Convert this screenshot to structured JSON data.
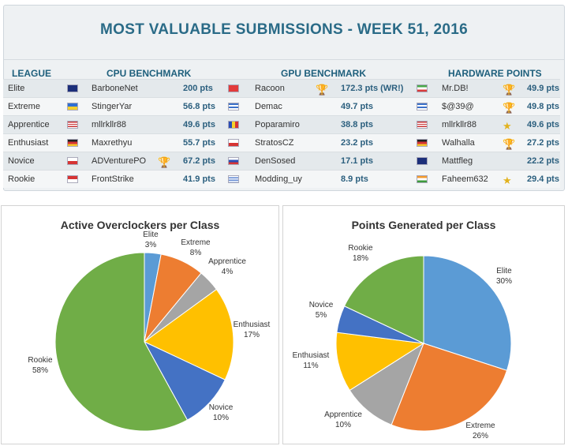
{
  "header": {
    "title": "MOST VALUABLE SUBMISSIONS - WEEK 51, 2016"
  },
  "columns": {
    "league": "LEAGUE",
    "cpu": "CPU BENCHMARK",
    "gpu": "GPU BENCHMARK",
    "hw": "HARDWARE POINTS"
  },
  "rows": [
    {
      "league": "Elite",
      "cpu_flag": "australia",
      "cpu_user": "BarboneNet",
      "cpu_pts": "200 pts",
      "cpu_trophy": "",
      "gpu_flag": "switzerland",
      "gpu_user": "Racoon",
      "gpu_pts": "172.3 pts (WR!)",
      "gpu_trophy": "gold-trophy",
      "hw_flag": "iran",
      "hw_user": "Mr.DB!",
      "hw_pts": "49.9 pts",
      "hw_trophy": "gold-trophy"
    },
    {
      "league": "Extreme",
      "cpu_flag": "ukraine",
      "cpu_user": "StingerYar",
      "cpu_pts": "56.8 pts",
      "cpu_trophy": "",
      "gpu_flag": "greece",
      "gpu_user": "Demac",
      "gpu_pts": "49.7 pts",
      "gpu_trophy": "",
      "hw_flag": "greece",
      "hw_user": "$@39@",
      "hw_pts": "49.8 pts",
      "hw_trophy": "gold-trophy"
    },
    {
      "league": "Apprentice",
      "cpu_flag": "usa",
      "cpu_user": "mllrkllr88",
      "cpu_pts": "49.6 pts",
      "cpu_trophy": "",
      "gpu_flag": "romania",
      "gpu_user": "Poparamiro",
      "gpu_pts": "38.8 pts",
      "gpu_trophy": "",
      "hw_flag": "usa",
      "hw_user": "mllrkllr88",
      "hw_pts": "49.6 pts",
      "hw_trophy": "star-trophy"
    },
    {
      "league": "Enthusiast",
      "cpu_flag": "germany",
      "cpu_user": "Maxrethyu",
      "cpu_pts": "55.7 pts",
      "cpu_trophy": "",
      "gpu_flag": "czech",
      "gpu_user": "StratosCZ",
      "gpu_pts": "23.2 pts",
      "gpu_trophy": "",
      "hw_flag": "germany",
      "hw_user": "Walhalla",
      "hw_pts": "27.2 pts",
      "hw_trophy": "gold-trophy"
    },
    {
      "league": "Novice",
      "cpu_flag": "poland",
      "cpu_user": "ADVenturePO",
      "cpu_pts": "67.2 pts",
      "cpu_trophy": "silver-trophy",
      "gpu_flag": "russia",
      "gpu_user": "DenSosed",
      "gpu_pts": "17.1 pts",
      "gpu_trophy": "",
      "hw_flag": "new-zealand",
      "hw_user": "Mattfleg",
      "hw_pts": "22.2 pts",
      "hw_trophy": ""
    },
    {
      "league": "Rookie",
      "cpu_flag": "indonesia",
      "cpu_user": "FrontStrike",
      "cpu_pts": "41.9 pts",
      "cpu_trophy": "",
      "gpu_flag": "uruguay",
      "gpu_user": "Modding_uy",
      "gpu_pts": "8.9 pts",
      "gpu_trophy": "",
      "hw_flag": "india",
      "hw_user": "Faheem632",
      "hw_pts": "29.4 pts",
      "hw_trophy": "star-trophy"
    }
  ],
  "chart_data": [
    {
      "type": "pie",
      "title": "Active Overclockers per Class",
      "categories": [
        "Elite",
        "Extreme",
        "Apprentice",
        "Enthusiast",
        "Novice",
        "Rookie"
      ],
      "values": [
        3,
        8,
        4,
        17,
        10,
        58
      ],
      "labels": [
        "3%",
        "8%",
        "4%",
        "17%",
        "10%",
        "58%"
      ],
      "colors": [
        "#5b9bd5",
        "#ed7d31",
        "#a5a5a5",
        "#ffc000",
        "#4472c4",
        "#70ad47"
      ]
    },
    {
      "type": "pie",
      "title": "Points Generated per Class",
      "categories": [
        "Elite",
        "Extreme",
        "Apprentice",
        "Enthusiast",
        "Novice",
        "Rookie"
      ],
      "values": [
        30,
        26,
        10,
        11,
        5,
        18
      ],
      "labels": [
        "30%",
        "26%",
        "10%",
        "11%",
        "5%",
        "18%"
      ],
      "colors": [
        "#5b9bd5",
        "#ed7d31",
        "#a5a5a5",
        "#ffc000",
        "#4472c4",
        "#70ad47"
      ]
    }
  ]
}
